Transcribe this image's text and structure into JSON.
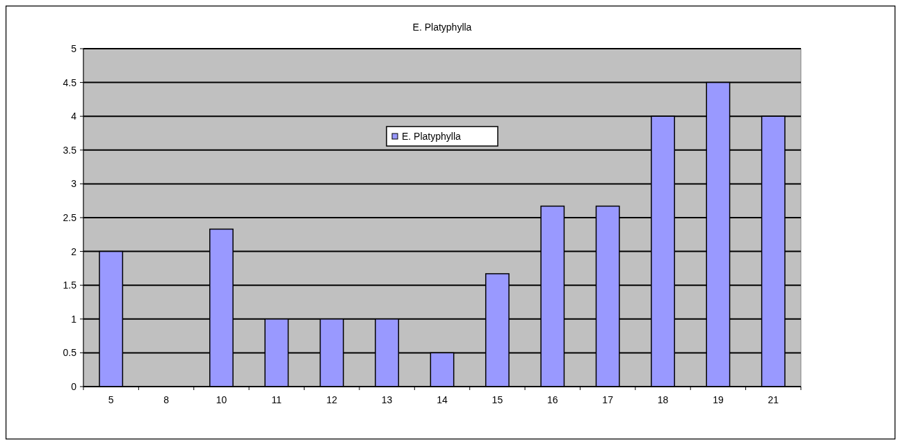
{
  "chart_data": {
    "type": "bar",
    "title": "E. Platyphylla",
    "categories": [
      "5",
      "8",
      "10",
      "11",
      "12",
      "13",
      "14",
      "15",
      "16",
      "17",
      "18",
      "19",
      "21"
    ],
    "series": [
      {
        "name": "E. Platyphylla",
        "color": "#9999ff",
        "values": [
          2,
          0,
          2.33,
          1,
          1,
          1,
          0.5,
          1.67,
          2.67,
          2.67,
          4,
          4.5,
          4
        ]
      }
    ],
    "ylim": [
      0,
      5
    ],
    "yticks": [
      0,
      0.5,
      1,
      1.5,
      2,
      2.5,
      3,
      3.5,
      4,
      4.5,
      5
    ],
    "grid": "y",
    "legend": "top"
  }
}
